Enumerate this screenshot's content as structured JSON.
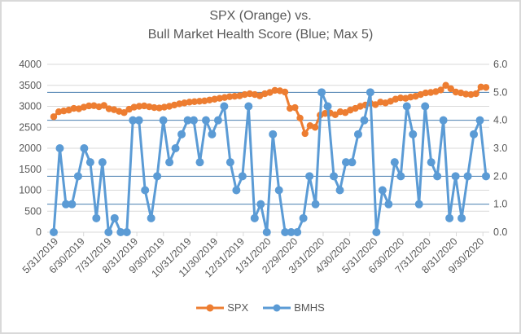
{
  "chart_data": {
    "type": "line",
    "title": "SPX (Orange) vs.\nBull Market Health Score (Blue; Max 5)",
    "title_lines": [
      "SPX (Orange) vs.",
      "Bull Market Health Score (Blue; Max 5)"
    ],
    "xlabel": "",
    "ylabel_left": "",
    "ylabel_right": "",
    "x_tick_labels": [
      "5/31/2019",
      "6/30/2019",
      "7/31/2019",
      "8/31/2019",
      "9/30/2019",
      "10/31/2019",
      "11/30/2019",
      "12/31/2019",
      "1/31/2020",
      "2/29/2020",
      "3/31/2020",
      "4/30/2020",
      "5/31/2020",
      "6/30/2020",
      "7/31/2020",
      "8/31/2020",
      "9/30/2020"
    ],
    "y_left": {
      "ylim": [
        0,
        4000
      ],
      "ticks": [
        "0",
        "500",
        "1000",
        "1500",
        "2000",
        "2500",
        "3000",
        "3500",
        "4000"
      ]
    },
    "y_right": {
      "ylim": [
        0,
        6
      ],
      "ticks": [
        "0.0",
        "1.0",
        "2.0",
        "3.0",
        "4.0",
        "5.0",
        "6.0"
      ],
      "gridlines_at": [
        1,
        2,
        4,
        5
      ]
    },
    "grid": true,
    "legend": "bottom",
    "series": [
      {
        "name": "SPX",
        "axis": "left",
        "color": "#ed7d31",
        "values": [
          2752,
          2870,
          2890,
          2910,
          2950,
          2940,
          2980,
          3010,
          3015,
          2990,
          3020,
          2940,
          2920,
          2880,
          2850,
          2930,
          2980,
          3000,
          3010,
          2990,
          2970,
          2960,
          2980,
          3000,
          3030,
          3060,
          3080,
          3100,
          3110,
          3120,
          3130,
          3150,
          3170,
          3190,
          3210,
          3230,
          3240,
          3250,
          3280,
          3300,
          3280,
          3250,
          3300,
          3330,
          3380,
          3370,
          3340,
          2950,
          2970,
          2720,
          2350,
          2540,
          2500,
          2790,
          2830,
          2840,
          2800,
          2870,
          2850,
          2910,
          2950,
          3000,
          3030,
          3070,
          3040,
          3100,
          3080,
          3120,
          3170,
          3200,
          3190,
          3220,
          3240,
          3280,
          3320,
          3330,
          3350,
          3390,
          3500,
          3420,
          3340,
          3320,
          3290,
          3280,
          3300,
          3460,
          3450
        ]
      },
      {
        "name": "BMHS",
        "axis": "right",
        "color": "#5b9bd5",
        "values": [
          0,
          3,
          1,
          1,
          2,
          3,
          2.5,
          0.5,
          2.5,
          0,
          0.5,
          0,
          0,
          4,
          4,
          1.5,
          0.5,
          2,
          4,
          2.5,
          3,
          3.5,
          4,
          4,
          2.5,
          4,
          3.5,
          4,
          4.5,
          2.5,
          1.5,
          2,
          4.5,
          0.5,
          1,
          0,
          3.5,
          1.5,
          0,
          0,
          0,
          0.5,
          2,
          1,
          5,
          4.5,
          2,
          1.5,
          2.5,
          2.5,
          3.5,
          4,
          5,
          0,
          1.5,
          1,
          2.5,
          2,
          4.5,
          3.5,
          1,
          4.5,
          2.5,
          2,
          4,
          0.5,
          2,
          0.5,
          2,
          3.5,
          4,
          2
        ]
      }
    ]
  },
  "legend": {
    "items": [
      {
        "label": "SPX",
        "color": "#ed7d31"
      },
      {
        "label": "BMHS",
        "color": "#5b9bd5"
      }
    ]
  }
}
